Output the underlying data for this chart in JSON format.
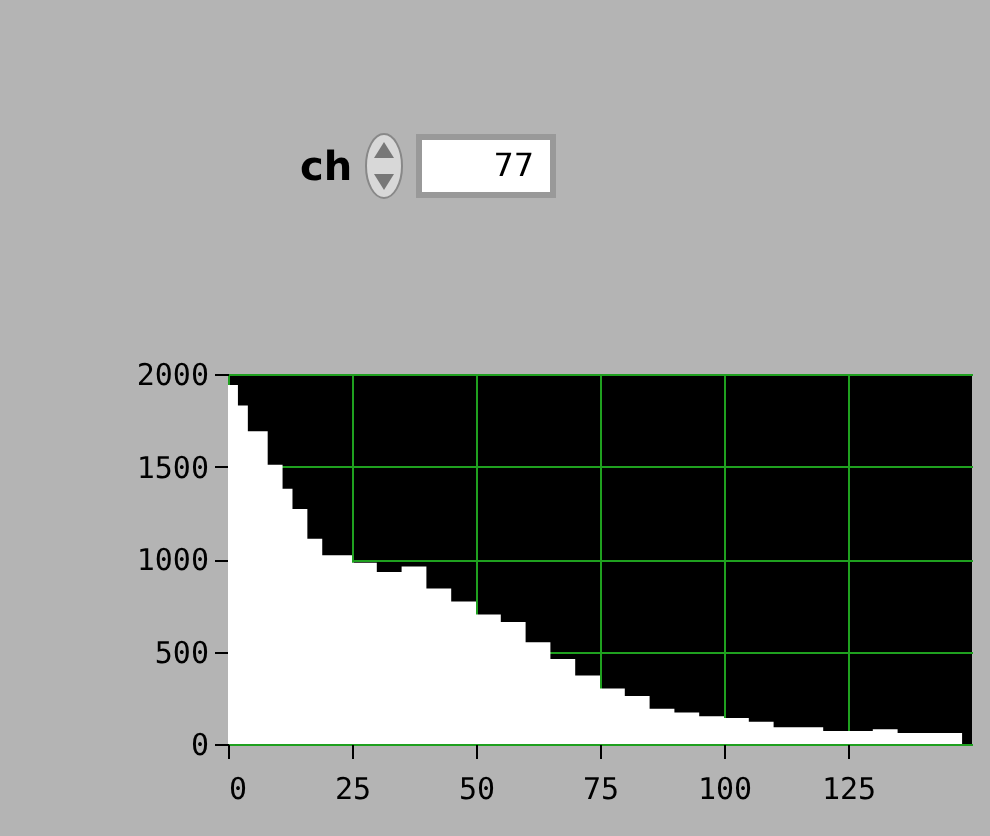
{
  "chart_data": {
    "type": "area",
    "x": [
      0,
      2,
      4,
      8,
      11,
      13,
      16,
      19,
      25,
      30,
      35,
      40,
      45,
      50,
      55,
      60,
      65,
      70,
      75,
      80,
      85,
      90,
      95,
      100,
      105,
      110,
      115,
      120,
      125,
      130,
      135,
      140,
      145,
      148
    ],
    "series": [
      {
        "color": "#ffffff",
        "values": [
          1940,
          1830,
          1690,
          1510,
          1380,
          1270,
          1110,
          1020,
          980,
          930,
          960,
          840,
          770,
          700,
          660,
          550,
          460,
          370,
          300,
          260,
          190,
          170,
          150,
          140,
          120,
          90,
          90,
          70,
          70,
          80,
          60,
          60,
          60,
          60
        ]
      }
    ],
    "xlim": [
      0,
      150
    ],
    "xticks": [
      0,
      25,
      50,
      75,
      100,
      125
    ],
    "ylim": [
      0,
      2000
    ],
    "yticks": [
      0,
      500,
      1000,
      1500,
      2000
    ],
    "grid": true,
    "annotations": [
      "ch",
      "77"
    ]
  }
}
